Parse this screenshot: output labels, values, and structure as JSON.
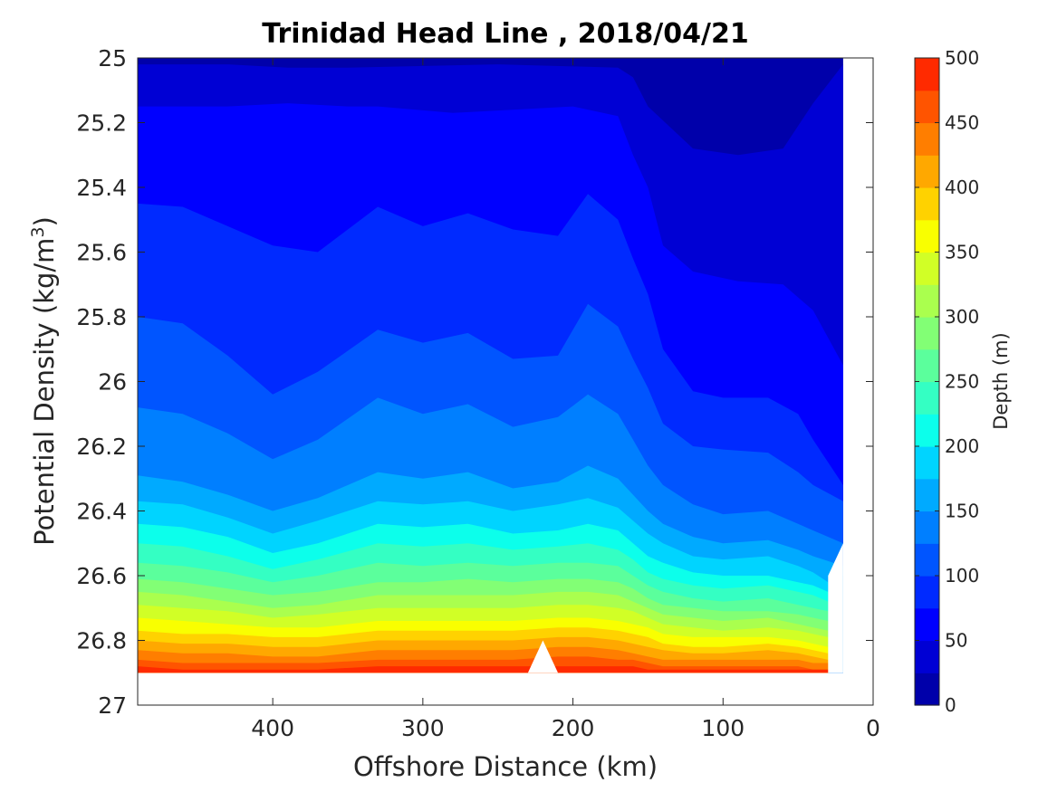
{
  "chart_data": {
    "type": "contourf",
    "title": "Trinidad Head Line , 2018/04/21",
    "xlabel": "Offshore Distance (km)",
    "ylabel_main": "Potential Density (kg/m",
    "ylabel_sup": "3",
    "ylabel_close": ")",
    "xlim": [
      490,
      0
    ],
    "x_reversed": true,
    "xticks": [
      400,
      300,
      200,
      100,
      0
    ],
    "ylim": [
      25,
      27
    ],
    "y_reversed": true,
    "yticks": [
      "25",
      "25.2",
      "25.4",
      "25.6",
      "25.8",
      "26",
      "26.2",
      "26.4",
      "26.6",
      "26.8",
      "27"
    ],
    "colorbar": {
      "label": "Depth (m)",
      "range": [
        0,
        500
      ],
      "levels": [
        0,
        25,
        50,
        75,
        100,
        125,
        150,
        175,
        200,
        225,
        250,
        275,
        300,
        325,
        350,
        375,
        400,
        425,
        450,
        475,
        500
      ],
      "ticks": [
        "0",
        "50",
        "100",
        "150",
        "200",
        "250",
        "300",
        "350",
        "400",
        "450",
        "500"
      ],
      "colors": [
        "#00007f",
        "#0000aa",
        "#0000d4",
        "#0000ff",
        "#002aff",
        "#0055ff",
        "#007fff",
        "#00aaff",
        "#00d4ff",
        "#0cffeb",
        "#34ffc3",
        "#5bff9c",
        "#82ff75",
        "#aaff4e",
        "#d1ff26",
        "#f9ff00",
        "#ffd200",
        "#ffa800",
        "#ff7e00",
        "#ff5400",
        "#ff2a00",
        "#d80000",
        "#aa0000"
      ]
    },
    "data_extent": {
      "x_min": 20,
      "x_max": 490,
      "density_max": 26.9
    },
    "contours": [
      {
        "level": 50,
        "x": [
          490,
          430,
          390,
          350,
          250,
          170,
          160,
          150,
          120,
          90,
          60,
          40,
          20
        ],
        "y": [
          25.02,
          25.02,
          25.03,
          25.03,
          25.02,
          25.03,
          25.06,
          25.15,
          25.28,
          25.3,
          25.28,
          25.14,
          25.02
        ]
      },
      {
        "level": 75,
        "x": [
          490,
          430,
          390,
          350,
          330,
          280,
          240,
          200,
          170,
          160,
          150,
          140,
          120,
          90,
          60,
          40,
          20
        ],
        "y": [
          25.15,
          25.15,
          25.14,
          25.15,
          25.15,
          25.17,
          25.16,
          25.15,
          25.18,
          25.3,
          25.4,
          25.58,
          25.66,
          25.69,
          25.7,
          25.78,
          25.95
        ]
      },
      {
        "level": 100,
        "x": [
          490,
          460,
          430,
          400,
          370,
          330,
          300,
          270,
          240,
          210,
          190,
          170,
          160,
          150,
          140,
          120,
          100,
          70,
          50,
          40,
          20
        ],
        "y": [
          25.45,
          25.46,
          25.52,
          25.58,
          25.6,
          25.46,
          25.52,
          25.48,
          25.53,
          25.55,
          25.42,
          25.5,
          25.62,
          25.73,
          25.9,
          26.03,
          26.05,
          26.05,
          26.1,
          26.18,
          26.32
        ]
      },
      {
        "level": 125,
        "x": [
          490,
          460,
          430,
          400,
          370,
          330,
          300,
          270,
          240,
          210,
          190,
          170,
          160,
          150,
          140,
          120,
          100,
          70,
          50,
          40,
          20
        ],
        "y": [
          25.8,
          25.82,
          25.92,
          26.04,
          25.97,
          25.84,
          25.88,
          25.85,
          25.93,
          25.92,
          25.76,
          25.83,
          25.93,
          26.02,
          26.13,
          26.2,
          26.21,
          26.22,
          26.28,
          26.32,
          26.37
        ]
      },
      {
        "level": 150,
        "x": [
          490,
          460,
          430,
          400,
          370,
          330,
          300,
          270,
          240,
          210,
          190,
          170,
          160,
          150,
          140,
          120,
          100,
          70,
          50,
          40,
          20
        ],
        "y": [
          26.08,
          26.1,
          26.16,
          26.24,
          26.18,
          26.05,
          26.1,
          26.07,
          26.14,
          26.11,
          26.04,
          26.1,
          26.18,
          26.26,
          26.32,
          26.38,
          26.41,
          26.4,
          26.44,
          26.46,
          26.5
        ]
      },
      {
        "level": 175,
        "x": [
          490,
          460,
          430,
          400,
          370,
          330,
          300,
          270,
          240,
          210,
          190,
          170,
          160,
          150,
          140,
          120,
          100,
          70,
          50,
          40,
          20
        ],
        "y": [
          26.29,
          26.31,
          26.35,
          26.4,
          26.36,
          26.28,
          26.3,
          26.28,
          26.33,
          26.31,
          26.26,
          26.3,
          26.35,
          26.4,
          26.44,
          26.48,
          26.5,
          26.49,
          26.52,
          26.54,
          26.57
        ]
      },
      {
        "level": 200,
        "x": [
          490,
          460,
          430,
          400,
          370,
          330,
          300,
          270,
          240,
          210,
          190,
          170,
          160,
          150,
          140,
          120,
          100,
          70,
          50,
          40,
          30
        ],
        "y": [
          26.37,
          26.38,
          26.42,
          26.47,
          26.43,
          26.37,
          26.38,
          26.37,
          26.4,
          26.38,
          26.36,
          26.39,
          26.43,
          26.47,
          26.5,
          26.54,
          26.55,
          26.54,
          26.57,
          26.59,
          26.62
        ]
      },
      {
        "level": 225,
        "x": [
          490,
          460,
          430,
          400,
          370,
          330,
          300,
          270,
          240,
          210,
          190,
          170,
          160,
          150,
          140,
          120,
          100,
          70,
          50,
          40,
          30
        ],
        "y": [
          26.44,
          26.45,
          26.48,
          26.53,
          26.5,
          26.44,
          26.45,
          26.44,
          26.47,
          26.46,
          26.44,
          26.46,
          26.5,
          26.54,
          26.56,
          26.59,
          26.6,
          26.6,
          26.62,
          26.63,
          26.65
        ]
      },
      {
        "level": 250,
        "x": [
          490,
          460,
          430,
          400,
          370,
          330,
          300,
          270,
          240,
          210,
          190,
          170,
          160,
          150,
          140,
          120,
          100,
          70,
          50,
          40,
          30
        ],
        "y": [
          26.5,
          26.51,
          26.54,
          26.58,
          26.55,
          26.5,
          26.51,
          26.5,
          26.52,
          26.51,
          26.5,
          26.52,
          26.55,
          26.59,
          26.61,
          26.63,
          26.64,
          26.63,
          26.65,
          26.66,
          26.68
        ]
      },
      {
        "level": 275,
        "x": [
          490,
          460,
          430,
          400,
          370,
          330,
          300,
          270,
          240,
          210,
          190,
          170,
          160,
          150,
          140,
          120,
          100,
          70,
          50,
          40,
          30
        ],
        "y": [
          26.56,
          26.57,
          26.59,
          26.62,
          26.6,
          26.56,
          26.57,
          26.56,
          26.57,
          26.56,
          26.56,
          26.57,
          26.6,
          26.63,
          26.65,
          26.67,
          26.68,
          26.67,
          26.69,
          26.7,
          26.71
        ]
      },
      {
        "level": 300,
        "x": [
          490,
          460,
          430,
          400,
          370,
          330,
          300,
          270,
          240,
          210,
          190,
          170,
          160,
          150,
          140,
          120,
          100,
          70,
          50,
          40,
          30
        ],
        "y": [
          26.61,
          26.62,
          26.64,
          26.66,
          26.65,
          26.62,
          26.62,
          26.61,
          26.62,
          26.61,
          26.61,
          26.62,
          26.64,
          26.67,
          26.69,
          26.7,
          26.71,
          26.71,
          26.72,
          26.73,
          26.74
        ]
      },
      {
        "level": 325,
        "x": [
          490,
          460,
          430,
          400,
          370,
          330,
          300,
          270,
          240,
          210,
          190,
          170,
          160,
          150,
          140,
          120,
          100,
          70,
          50,
          40,
          30
        ],
        "y": [
          26.65,
          26.66,
          26.68,
          26.7,
          26.69,
          26.66,
          26.66,
          26.66,
          26.66,
          26.65,
          26.65,
          26.66,
          26.68,
          26.7,
          26.72,
          26.73,
          26.74,
          26.73,
          26.75,
          26.76,
          26.77
        ]
      },
      {
        "level": 350,
        "x": [
          490,
          460,
          430,
          400,
          370,
          330,
          300,
          270,
          240,
          210,
          190,
          170,
          160,
          150,
          140,
          120,
          100,
          70,
          50,
          40,
          30
        ],
        "y": [
          26.69,
          26.7,
          26.71,
          26.73,
          26.72,
          26.7,
          26.7,
          26.7,
          26.7,
          26.69,
          26.69,
          26.7,
          26.71,
          26.73,
          26.75,
          26.76,
          26.77,
          26.76,
          26.77,
          26.78,
          26.79
        ]
      },
      {
        "level": 375,
        "x": [
          490,
          460,
          430,
          400,
          370,
          330,
          300,
          270,
          240,
          210,
          190,
          170,
          160,
          150,
          140,
          120,
          100,
          70,
          50,
          40,
          30
        ],
        "y": [
          26.73,
          26.74,
          26.75,
          26.76,
          26.76,
          26.74,
          26.74,
          26.74,
          26.74,
          26.73,
          26.73,
          26.74,
          26.75,
          26.76,
          26.78,
          26.79,
          26.79,
          26.79,
          26.8,
          26.81,
          26.82
        ]
      },
      {
        "level": 400,
        "x": [
          490,
          460,
          430,
          400,
          370,
          330,
          300,
          270,
          240,
          210,
          190,
          170,
          160,
          150,
          140,
          120,
          100,
          70,
          50,
          40,
          30
        ],
        "y": [
          26.77,
          26.78,
          26.78,
          26.79,
          26.79,
          26.77,
          26.77,
          26.77,
          26.77,
          26.76,
          26.76,
          26.77,
          26.78,
          26.79,
          26.81,
          26.82,
          26.82,
          26.81,
          26.82,
          26.83,
          26.84
        ]
      },
      {
        "level": 425,
        "x": [
          490,
          460,
          430,
          400,
          370,
          330,
          300,
          270,
          240,
          210,
          190,
          170,
          160,
          150,
          140,
          120,
          100,
          70,
          50,
          40,
          30
        ],
        "y": [
          26.8,
          26.81,
          26.81,
          26.82,
          26.82,
          26.8,
          26.8,
          26.8,
          26.8,
          26.79,
          26.79,
          26.8,
          26.81,
          26.82,
          26.83,
          26.84,
          26.84,
          26.83,
          26.84,
          26.85,
          26.86
        ]
      },
      {
        "level": 450,
        "x": [
          490,
          460,
          430,
          400,
          370,
          330,
          300,
          270,
          240,
          210,
          190,
          170,
          160,
          150,
          140,
          120,
          100,
          70,
          50,
          40,
          30
        ],
        "y": [
          26.83,
          26.84,
          26.84,
          26.85,
          26.85,
          26.83,
          26.83,
          26.83,
          26.83,
          26.82,
          26.82,
          26.83,
          26.84,
          26.85,
          26.86,
          26.86,
          26.86,
          26.86,
          26.86,
          26.87,
          26.87
        ]
      },
      {
        "level": 475,
        "x": [
          490,
          460,
          430,
          400,
          370,
          330,
          300,
          270,
          240,
          210,
          190,
          170,
          160,
          150,
          140,
          120,
          100,
          70,
          50,
          40,
          30
        ],
        "y": [
          26.86,
          26.87,
          26.87,
          26.87,
          26.87,
          26.86,
          26.86,
          26.86,
          26.86,
          26.85,
          26.85,
          26.86,
          26.86,
          26.87,
          26.88,
          26.88,
          26.88,
          26.88,
          26.88,
          26.89,
          26.89
        ]
      },
      {
        "level": 500,
        "x": [
          490,
          460,
          430,
          400,
          370,
          330,
          300,
          270,
          240,
          210,
          190,
          170,
          160,
          150,
          140,
          120,
          100,
          70,
          50,
          40,
          30
        ],
        "y": [
          26.88,
          26.89,
          26.89,
          26.89,
          26.89,
          26.88,
          26.88,
          26.88,
          26.88,
          26.88,
          26.88,
          26.88,
          26.88,
          26.89,
          26.89,
          26.89,
          26.89,
          26.89,
          26.89,
          26.89,
          26.89
        ]
      }
    ],
    "notch": {
      "x": [
        230,
        220,
        210
      ],
      "y": [
        26.9,
        26.8,
        26.9
      ]
    }
  }
}
